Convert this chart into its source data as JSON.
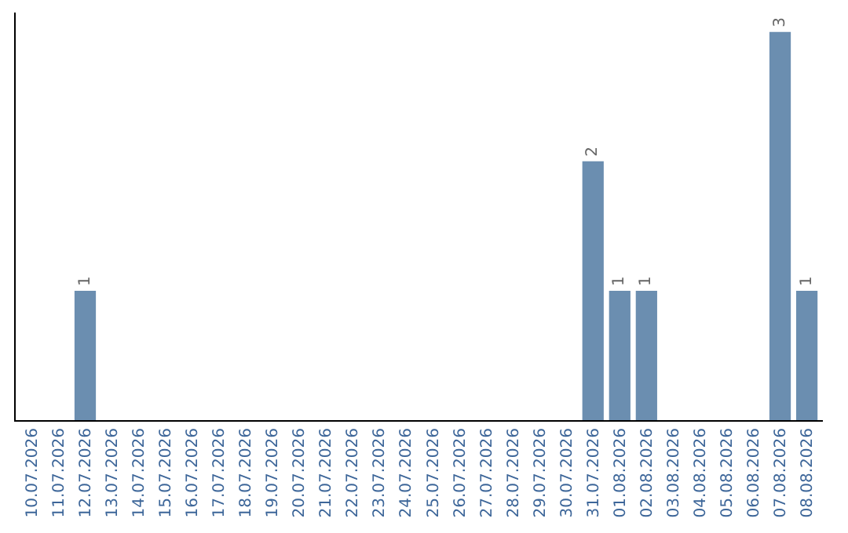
{
  "chart_data": {
    "type": "bar",
    "categories": [
      "10.07.2026",
      "11.07.2026",
      "12.07.2026",
      "13.07.2026",
      "14.07.2026",
      "15.07.2026",
      "16.07.2026",
      "17.07.2026",
      "18.07.2026",
      "19.07.2026",
      "20.07.2026",
      "21.07.2026",
      "22.07.2026",
      "23.07.2026",
      "24.07.2026",
      "25.07.2026",
      "26.07.2026",
      "27.07.2026",
      "28.07.2026",
      "29.07.2026",
      "30.07.2026",
      "31.07.2026",
      "01.08.2026",
      "02.08.2026",
      "03.08.2026",
      "04.08.2026",
      "05.08.2026",
      "06.08.2026",
      "07.08.2026",
      "08.08.2026"
    ],
    "values": [
      0,
      0,
      1,
      0,
      0,
      0,
      0,
      0,
      0,
      0,
      0,
      0,
      0,
      0,
      0,
      0,
      0,
      0,
      0,
      0,
      0,
      2,
      1,
      1,
      0,
      0,
      0,
      0,
      3,
      1
    ],
    "value_labels": [
      null,
      null,
      "1",
      null,
      null,
      null,
      null,
      null,
      null,
      null,
      null,
      null,
      null,
      null,
      null,
      null,
      null,
      null,
      null,
      null,
      null,
      "2",
      "1",
      "1",
      null,
      null,
      null,
      null,
      "3",
      "1"
    ],
    "color": "#6b8eb0",
    "ylim": [
      0,
      3.15
    ],
    "tick_labels": "x"
  }
}
